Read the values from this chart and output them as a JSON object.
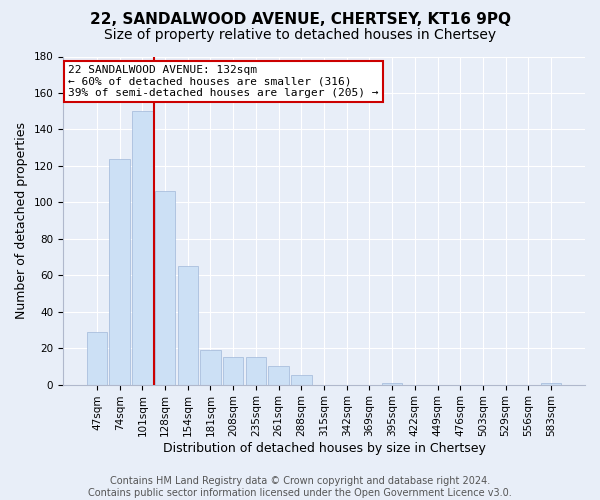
{
  "title": "22, SANDALWOOD AVENUE, CHERTSEY, KT16 9PQ",
  "subtitle": "Size of property relative to detached houses in Chertsey",
  "xlabel": "Distribution of detached houses by size in Chertsey",
  "ylabel": "Number of detached properties",
  "footer_line1": "Contains HM Land Registry data © Crown copyright and database right 2024.",
  "footer_line2": "Contains public sector information licensed under the Open Government Licence v3.0.",
  "bar_labels": [
    "47sqm",
    "74sqm",
    "101sqm",
    "128sqm",
    "154sqm",
    "181sqm",
    "208sqm",
    "235sqm",
    "261sqm",
    "288sqm",
    "315sqm",
    "342sqm",
    "369sqm",
    "395sqm",
    "422sqm",
    "449sqm",
    "476sqm",
    "503sqm",
    "529sqm",
    "556sqm",
    "583sqm"
  ],
  "bar_values": [
    29,
    124,
    150,
    106,
    65,
    19,
    15,
    15,
    10,
    5,
    0,
    0,
    0,
    1,
    0,
    0,
    0,
    0,
    0,
    0,
    1
  ],
  "bar_color": "#cce0f5",
  "bar_edgecolor": "#a0b8d8",
  "vline_color": "#cc0000",
  "vline_x": 2.5,
  "annotation_text": "22 SANDALWOOD AVENUE: 132sqm\n← 60% of detached houses are smaller (316)\n39% of semi-detached houses are larger (205) →",
  "annotation_box_edgecolor": "#cc0000",
  "ylim": [
    0,
    180
  ],
  "yticks": [
    0,
    20,
    40,
    60,
    80,
    100,
    120,
    140,
    160,
    180
  ],
  "background_color": "#e8eef8",
  "plot_background": "#e8eef8",
  "grid_color": "#ffffff",
  "title_fontsize": 11,
  "subtitle_fontsize": 10,
  "axis_label_fontsize": 9,
  "tick_fontsize": 7.5,
  "annotation_fontsize": 8
}
